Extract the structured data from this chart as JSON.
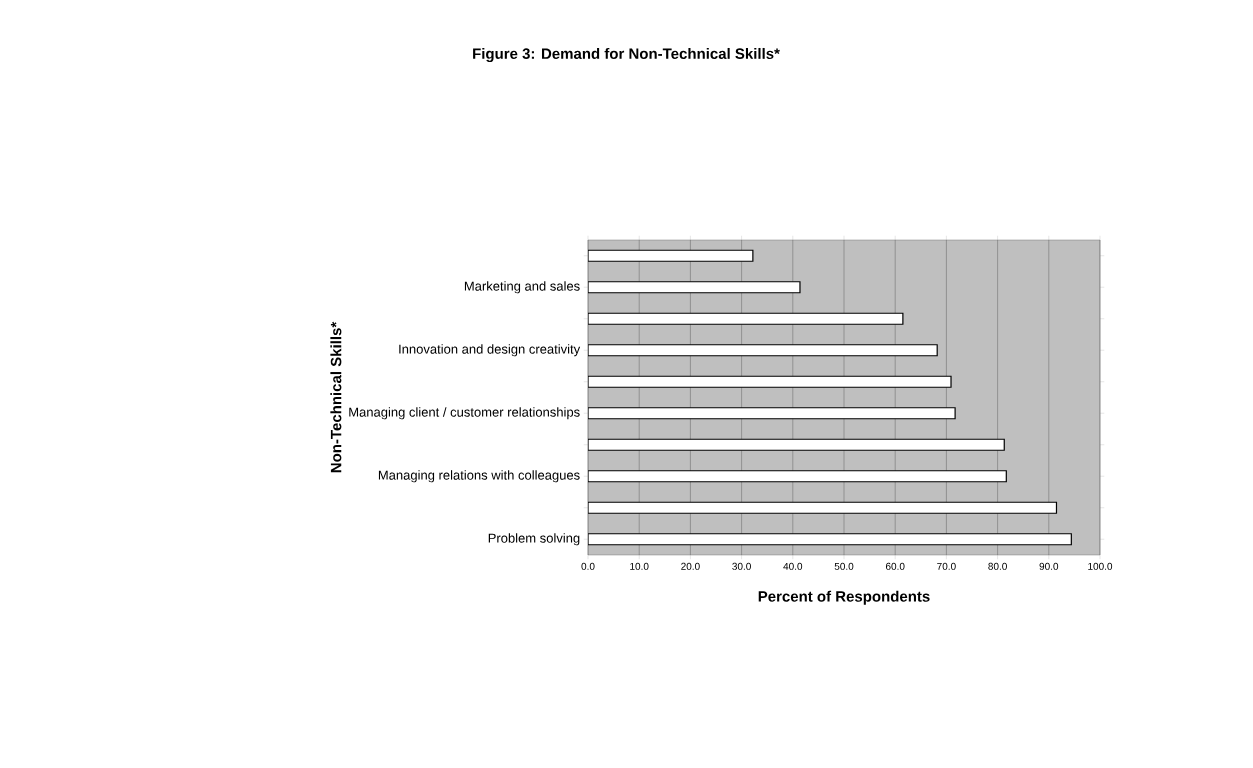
{
  "chart_data": {
    "type": "bar",
    "orientation": "horizontal",
    "title": "Figure 3: Demand for Non-Technical Skills*",
    "xlabel": "Percent of Respondents",
    "ylabel": "Non-Technical Skills*",
    "categories": [
      null,
      "Marketing and sales",
      null,
      "Innovation and design creativity",
      null,
      "Managing client / customer relationships",
      null,
      "Managing relations with colleagues",
      null,
      "Problem solving"
    ],
    "values": [
      32.2,
      41.4,
      61.5,
      68.2,
      70.9,
      71.7,
      81.3,
      81.7,
      91.5,
      94.4
    ],
    "color": "#ffffff",
    "xlim": [
      0,
      100
    ],
    "xticks": [
      {
        "value": 0,
        "label": "0.0"
      },
      {
        "value": 10,
        "label": "10.0"
      },
      {
        "value": 20,
        "label": "20.0"
      },
      {
        "value": 30,
        "label": "30.0"
      },
      {
        "value": 40,
        "label": "40.0"
      },
      {
        "value": 50,
        "label": "50.0"
      },
      {
        "value": 60,
        "label": "60.0"
      },
      {
        "value": 70,
        "label": "70.0"
      },
      {
        "value": 80,
        "label": "80.0"
      },
      {
        "value": 90,
        "label": "90.0"
      },
      {
        "value": 100,
        "label": "100.0"
      }
    ],
    "grid": "x"
  }
}
